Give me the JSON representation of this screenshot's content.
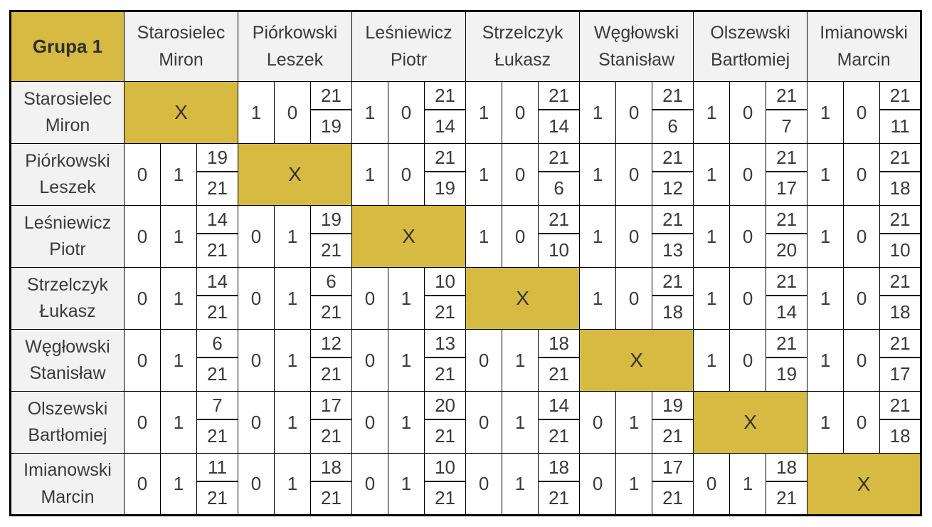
{
  "page": {
    "background": "#ffffff"
  },
  "table": {
    "title": "Grupa 1",
    "diagonal_marker": "X",
    "colors": {
      "accent_gold": "#d6ba42",
      "header_bg": "#f2f2f2",
      "cell_bg": "#ffffff",
      "border": "#000000",
      "text": "#3a3a3a"
    },
    "players": [
      "Starosielec Miron",
      "Piórkowski Leszek",
      "Leśniewicz Piotr",
      "Strzelczyk Łukasz",
      "Węgłowski Stanisław",
      "Olszewski Bartłomiej",
      "Imianowski Marcin"
    ],
    "rows": [
      {
        "player": "Starosielec Miron",
        "cells": [
          "X",
          {
            "w": "1",
            "l": "0",
            "top": "21",
            "bottom": "19"
          },
          {
            "w": "1",
            "l": "0",
            "top": "21",
            "bottom": "14"
          },
          {
            "w": "1",
            "l": "0",
            "top": "21",
            "bottom": "14"
          },
          {
            "w": "1",
            "l": "0",
            "top": "21",
            "bottom": "6"
          },
          {
            "w": "1",
            "l": "0",
            "top": "21",
            "bottom": "7"
          },
          {
            "w": "1",
            "l": "0",
            "top": "21",
            "bottom": "11"
          }
        ]
      },
      {
        "player": "Piórkowski Leszek",
        "cells": [
          {
            "w": "0",
            "l": "1",
            "top": "19",
            "bottom": "21"
          },
          "X",
          {
            "w": "1",
            "l": "0",
            "top": "21",
            "bottom": "19"
          },
          {
            "w": "1",
            "l": "0",
            "top": "21",
            "bottom": "6"
          },
          {
            "w": "1",
            "l": "0",
            "top": "21",
            "bottom": "12"
          },
          {
            "w": "1",
            "l": "0",
            "top": "21",
            "bottom": "17"
          },
          {
            "w": "1",
            "l": "0",
            "top": "21",
            "bottom": "18"
          }
        ]
      },
      {
        "player": "Leśniewicz Piotr",
        "cells": [
          {
            "w": "0",
            "l": "1",
            "top": "14",
            "bottom": "21"
          },
          {
            "w": "0",
            "l": "1",
            "top": "19",
            "bottom": "21"
          },
          "X",
          {
            "w": "1",
            "l": "0",
            "top": "21",
            "bottom": "10"
          },
          {
            "w": "1",
            "l": "0",
            "top": "21",
            "bottom": "13"
          },
          {
            "w": "1",
            "l": "0",
            "top": "21",
            "bottom": "20"
          },
          {
            "w": "1",
            "l": "0",
            "top": "21",
            "bottom": "10"
          }
        ]
      },
      {
        "player": "Strzelczyk Łukasz",
        "cells": [
          {
            "w": "0",
            "l": "1",
            "top": "14",
            "bottom": "21"
          },
          {
            "w": "0",
            "l": "1",
            "top": "6",
            "bottom": "21"
          },
          {
            "w": "0",
            "l": "1",
            "top": "10",
            "bottom": "21"
          },
          "X",
          {
            "w": "1",
            "l": "0",
            "top": "21",
            "bottom": "18"
          },
          {
            "w": "1",
            "l": "0",
            "top": "21",
            "bottom": "14"
          },
          {
            "w": "1",
            "l": "0",
            "top": "21",
            "bottom": "18"
          }
        ]
      },
      {
        "player": "Węgłowski Stanisław",
        "cells": [
          {
            "w": "0",
            "l": "1",
            "top": "6",
            "bottom": "21"
          },
          {
            "w": "0",
            "l": "1",
            "top": "12",
            "bottom": "21"
          },
          {
            "w": "0",
            "l": "1",
            "top": "13",
            "bottom": "21"
          },
          {
            "w": "0",
            "l": "1",
            "top": "18",
            "bottom": "21"
          },
          "X",
          {
            "w": "1",
            "l": "0",
            "top": "21",
            "bottom": "19"
          },
          {
            "w": "1",
            "l": "0",
            "top": "21",
            "bottom": "17"
          }
        ]
      },
      {
        "player": "Olszewski Bartłomiej",
        "cells": [
          {
            "w": "0",
            "l": "1",
            "top": "7",
            "bottom": "21"
          },
          {
            "w": "0",
            "l": "1",
            "top": "17",
            "bottom": "21"
          },
          {
            "w": "0",
            "l": "1",
            "top": "20",
            "bottom": "21"
          },
          {
            "w": "0",
            "l": "1",
            "top": "14",
            "bottom": "21"
          },
          {
            "w": "0",
            "l": "1",
            "top": "19",
            "bottom": "21"
          },
          "X",
          {
            "w": "1",
            "l": "0",
            "top": "21",
            "bottom": "18"
          }
        ]
      },
      {
        "player": "Imianowski Marcin",
        "cells": [
          {
            "w": "0",
            "l": "1",
            "top": "11",
            "bottom": "21"
          },
          {
            "w": "0",
            "l": "1",
            "top": "18",
            "bottom": "21"
          },
          {
            "w": "0",
            "l": "1",
            "top": "10",
            "bottom": "21"
          },
          {
            "w": "0",
            "l": "1",
            "top": "18",
            "bottom": "21"
          },
          {
            "w": "0",
            "l": "1",
            "top": "17",
            "bottom": "21"
          },
          {
            "w": "0",
            "l": "1",
            "top": "18",
            "bottom": "21"
          },
          "X"
        ]
      }
    ]
  }
}
